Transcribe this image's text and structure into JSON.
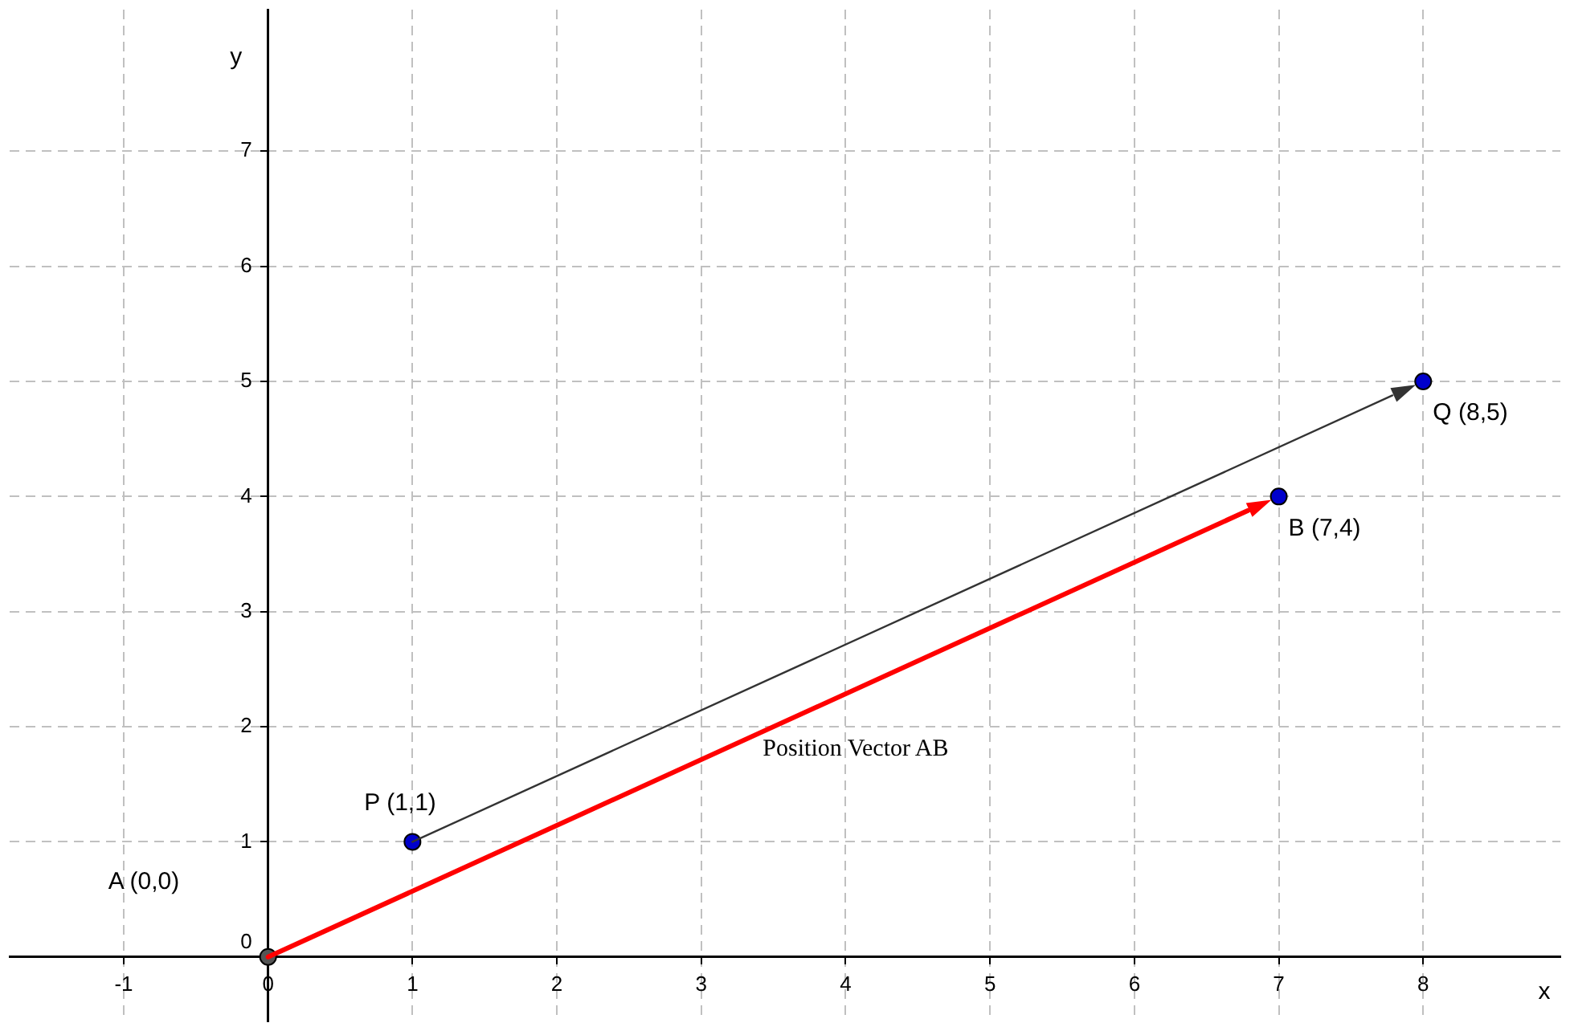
{
  "chart_data": {
    "type": "scatter",
    "xlabel": "x",
    "ylabel": "y",
    "xlim": [
      -1.79,
      8.95
    ],
    "ylim": [
      -0.56,
      8.23
    ],
    "xticks": [
      -1,
      0,
      1,
      2,
      3,
      4,
      5,
      6,
      7,
      8
    ],
    "yticks": [
      0,
      1,
      2,
      3,
      4,
      5,
      6,
      7
    ],
    "grid": true,
    "legend": false,
    "marker": "circle",
    "series": [
      {
        "color": "#555555",
        "x": [
          0
        ],
        "values": [
          0
        ]
      },
      {
        "color": "#0000cc",
        "x": [
          1,
          7,
          8
        ],
        "values": [
          1,
          4,
          5
        ]
      }
    ],
    "annotations": [
      "A (0,0)",
      {
        "text": "P (1,1)",
        "x": 1,
        "y": 1
      },
      {
        "text": "B (7,4)",
        "x": 7,
        "y": 4
      },
      {
        "text": "Q (8,5)",
        "x": 8,
        "y": 5
      },
      "Position Vector AB"
    ]
  }
}
